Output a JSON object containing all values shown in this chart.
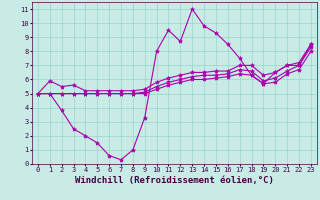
{
  "xlabel": "Windchill (Refroidissement éolien,°C)",
  "bg_color": "#c8ebe6",
  "line_color": "#aa00aa",
  "grid_color": "#9ad4ce",
  "xlim": [
    -0.5,
    23.5
  ],
  "ylim": [
    0,
    11.5
  ],
  "xticks": [
    0,
    1,
    2,
    3,
    4,
    5,
    6,
    7,
    8,
    9,
    10,
    11,
    12,
    13,
    14,
    15,
    16,
    17,
    18,
    19,
    20,
    21,
    22,
    23
  ],
  "yticks": [
    0,
    1,
    2,
    3,
    4,
    5,
    6,
    7,
    8,
    9,
    10,
    11
  ],
  "line1_x": [
    0,
    1,
    2,
    3,
    4,
    5,
    6,
    7,
    8,
    9,
    10,
    11,
    12,
    13,
    14,
    15,
    16,
    17,
    18,
    19,
    20,
    21,
    22,
    23
  ],
  "line1_y": [
    5.0,
    5.9,
    5.5,
    5.6,
    5.2,
    5.2,
    5.2,
    5.2,
    5.2,
    5.3,
    5.8,
    6.1,
    6.3,
    6.5,
    6.5,
    6.6,
    6.6,
    7.0,
    7.0,
    6.3,
    6.5,
    7.0,
    7.2,
    8.5
  ],
  "line2_x": [
    0,
    1,
    2,
    3,
    4,
    5,
    6,
    7,
    8,
    9,
    10,
    11,
    12,
    13,
    14,
    15,
    16,
    17,
    18,
    19,
    20,
    21,
    22,
    23
  ],
  "line2_y": [
    5.0,
    5.0,
    5.0,
    5.0,
    5.0,
    5.0,
    5.0,
    5.0,
    5.0,
    5.1,
    5.5,
    5.8,
    6.0,
    6.2,
    6.3,
    6.3,
    6.4,
    6.7,
    6.6,
    5.9,
    6.1,
    6.6,
    7.0,
    8.3
  ],
  "line3_x": [
    0,
    1,
    2,
    3,
    4,
    5,
    6,
    7,
    8,
    9,
    10,
    11,
    12,
    13,
    14,
    15,
    16,
    17,
    18,
    19,
    20,
    21,
    22,
    23
  ],
  "line3_y": [
    5.0,
    5.0,
    5.0,
    5.0,
    5.0,
    5.0,
    5.0,
    5.0,
    5.0,
    5.0,
    5.3,
    5.6,
    5.8,
    6.0,
    6.0,
    6.1,
    6.2,
    6.4,
    6.3,
    5.7,
    5.8,
    6.4,
    6.7,
    8.0
  ],
  "line4_x": [
    0,
    1,
    2,
    3,
    4,
    5,
    6,
    7,
    8,
    9,
    10,
    11,
    12,
    13,
    14,
    15,
    16,
    17,
    18,
    19,
    20,
    21,
    22,
    23
  ],
  "line4_y": [
    5.0,
    5.0,
    3.8,
    2.5,
    2.0,
    1.5,
    0.6,
    0.3,
    1.0,
    3.3,
    8.0,
    9.5,
    8.7,
    11.0,
    9.8,
    9.3,
    8.5,
    7.5,
    6.3,
    5.7,
    6.5,
    7.0,
    7.0,
    8.5
  ],
  "marker": "*",
  "markersize": 3,
  "linewidth": 0.8,
  "tick_fontsize": 5,
  "xlabel_fontsize": 6.5
}
